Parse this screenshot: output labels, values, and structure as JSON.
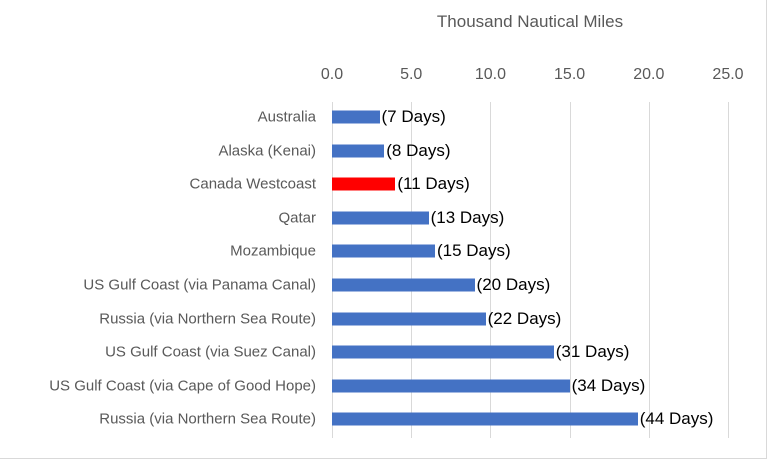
{
  "chart_data": {
    "type": "bar",
    "orientation": "horizontal",
    "title": "Thousand Nautical Miles",
    "xlabel": "Thousand Nautical Miles",
    "ylabel": "",
    "xlim": [
      0,
      25
    ],
    "ticks": [
      "0.0",
      "5.0",
      "10.0",
      "15.0",
      "20.0",
      "25.0"
    ],
    "grid": true,
    "legend": null,
    "categories": [
      "Australia",
      "Alaska (Kenai)",
      "Canada Westcoast",
      "Qatar",
      "Mozambique",
      "US Gulf Coast (via Panama Canal)",
      "Russia (via Northern Sea Route)",
      "US Gulf Coast (via Suez Canal)",
      "US Gulf Coast (via Cape of Good Hope)",
      "Russia (via Northern Sea Route)"
    ],
    "values": [
      3.0,
      3.3,
      4.0,
      6.1,
      6.5,
      9.0,
      9.7,
      14.0,
      15.0,
      19.3
    ],
    "data_labels": [
      "(7 Days)",
      "(8 Days)",
      "(11 Days)",
      "(13 Days)",
      "(15 Days)",
      "(20 Days)",
      "(22 Days)",
      "(31 Days)",
      "(34 Days)",
      "(44 Days)"
    ],
    "colors": [
      "#4472c4",
      "#4472c4",
      "#ff0000",
      "#4472c4",
      "#4472c4",
      "#4472c4",
      "#4472c4",
      "#4472c4",
      "#4472c4",
      "#4472c4"
    ],
    "highlight": "Canada Westcoast"
  }
}
